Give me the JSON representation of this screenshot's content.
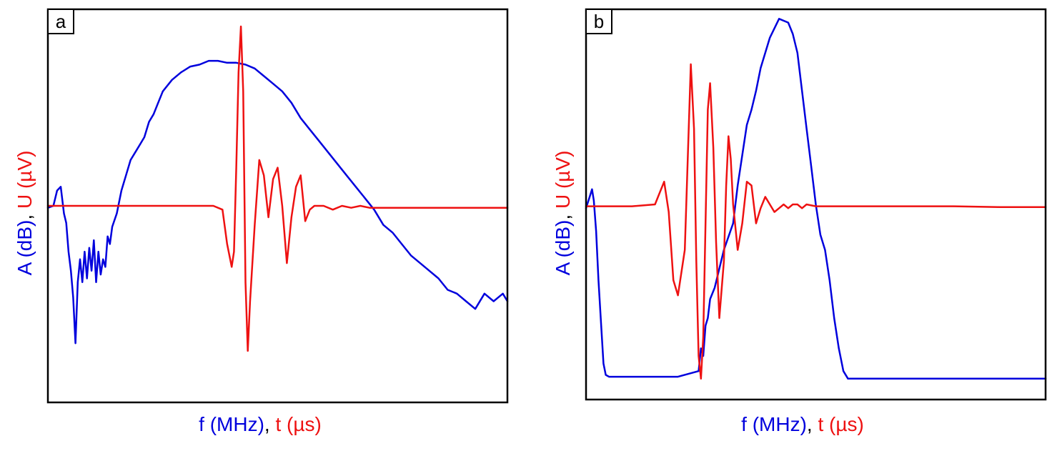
{
  "colors": {
    "amplitude": "#0000dd",
    "voltage": "#ee1111",
    "frame": "#000000"
  },
  "chart_data": [
    {
      "type": "line",
      "panel_label": "a",
      "xlabel": {
        "part1": "f (MHz)",
        "separator": ", ",
        "part2": "t (µs)"
      },
      "ylabel": {
        "part1": "A (dB)",
        "separator": ", ",
        "part2": "U (µV)"
      },
      "ticks": "none",
      "xlim": [
        0,
        1
      ],
      "ylim": [
        0,
        1
      ],
      "series": [
        {
          "name": "A (dB)",
          "color": "#0000dd",
          "x": [
            0.0,
            0.012,
            0.02,
            0.028,
            0.035,
            0.04,
            0.045,
            0.05,
            0.055,
            0.06,
            0.065,
            0.07,
            0.075,
            0.08,
            0.085,
            0.09,
            0.095,
            0.1,
            0.105,
            0.11,
            0.115,
            0.12,
            0.125,
            0.13,
            0.135,
            0.14,
            0.15,
            0.16,
            0.17,
            0.18,
            0.19,
            0.2,
            0.21,
            0.22,
            0.23,
            0.24,
            0.25,
            0.27,
            0.29,
            0.31,
            0.33,
            0.35,
            0.37,
            0.39,
            0.41,
            0.43,
            0.45,
            0.47,
            0.49,
            0.51,
            0.53,
            0.55,
            0.57,
            0.59,
            0.61,
            0.63,
            0.65,
            0.67,
            0.69,
            0.71,
            0.73,
            0.75,
            0.77,
            0.79,
            0.81,
            0.83,
            0.85,
            0.87,
            0.89,
            0.91,
            0.93,
            0.95,
            0.97,
            0.98,
            0.99,
            1.0
          ],
          "y": [
            0.495,
            0.5,
            0.54,
            0.55,
            0.48,
            0.455,
            0.38,
            0.33,
            0.26,
            0.14,
            0.3,
            0.36,
            0.3,
            0.38,
            0.31,
            0.39,
            0.33,
            0.41,
            0.3,
            0.38,
            0.32,
            0.36,
            0.34,
            0.42,
            0.4,
            0.445,
            0.48,
            0.54,
            0.58,
            0.62,
            0.64,
            0.66,
            0.68,
            0.72,
            0.74,
            0.77,
            0.8,
            0.83,
            0.85,
            0.865,
            0.87,
            0.88,
            0.88,
            0.875,
            0.875,
            0.87,
            0.86,
            0.84,
            0.82,
            0.8,
            0.77,
            0.73,
            0.7,
            0.67,
            0.64,
            0.61,
            0.58,
            0.55,
            0.52,
            0.49,
            0.45,
            0.43,
            0.4,
            0.37,
            0.35,
            0.33,
            0.31,
            0.28,
            0.27,
            0.25,
            0.23,
            0.27,
            0.25,
            0.26,
            0.27,
            0.25
          ]
        },
        {
          "name": "U (µV)",
          "color": "#ee1111",
          "x": [
            0.0,
            0.1,
            0.2,
            0.3,
            0.36,
            0.38,
            0.39,
            0.4,
            0.405,
            0.41,
            0.415,
            0.42,
            0.425,
            0.43,
            0.435,
            0.44,
            0.45,
            0.46,
            0.47,
            0.48,
            0.49,
            0.5,
            0.51,
            0.52,
            0.53,
            0.54,
            0.55,
            0.56,
            0.57,
            0.58,
            0.6,
            0.62,
            0.64,
            0.66,
            0.68,
            0.7,
            0.75,
            0.8,
            0.9,
            1.0
          ],
          "y": [
            0.5,
            0.5,
            0.5,
            0.5,
            0.5,
            0.49,
            0.4,
            0.34,
            0.38,
            0.6,
            0.85,
            0.97,
            0.8,
            0.3,
            0.12,
            0.25,
            0.45,
            0.62,
            0.58,
            0.47,
            0.57,
            0.6,
            0.5,
            0.35,
            0.47,
            0.55,
            0.58,
            0.46,
            0.49,
            0.5,
            0.5,
            0.49,
            0.5,
            0.495,
            0.5,
            0.495,
            0.495,
            0.495,
            0.495,
            0.495
          ]
        }
      ]
    },
    {
      "type": "line",
      "panel_label": "b",
      "xlabel": {
        "part1": "f (MHz)",
        "separator": ", ",
        "part2": "t (µs)"
      },
      "ylabel": {
        "part1": "A (dB)",
        "separator": ", ",
        "part2": "U (µV)"
      },
      "ticks": "none",
      "xlim": [
        0,
        1
      ],
      "ylim": [
        0,
        1
      ],
      "series": [
        {
          "name": "A (dB)",
          "color": "#0000dd",
          "x": [
            0.0,
            0.008,
            0.013,
            0.017,
            0.022,
            0.027,
            0.033,
            0.038,
            0.043,
            0.05,
            0.1,
            0.15,
            0.2,
            0.245,
            0.25,
            0.255,
            0.26,
            0.265,
            0.27,
            0.28,
            0.3,
            0.32,
            0.33,
            0.34,
            0.35,
            0.36,
            0.37,
            0.38,
            0.4,
            0.42,
            0.44,
            0.45,
            0.46,
            0.47,
            0.48,
            0.49,
            0.5,
            0.51,
            0.52,
            0.53,
            0.54,
            0.55,
            0.56,
            0.57,
            0.6,
            0.7,
            0.8,
            0.9,
            1.0
          ],
          "y": [
            0.49,
            0.52,
            0.54,
            0.51,
            0.43,
            0.3,
            0.18,
            0.08,
            0.05,
            0.045,
            0.045,
            0.045,
            0.045,
            0.06,
            0.12,
            0.1,
            0.18,
            0.2,
            0.25,
            0.28,
            0.38,
            0.45,
            0.55,
            0.63,
            0.71,
            0.75,
            0.8,
            0.86,
            0.94,
            0.99,
            0.98,
            0.95,
            0.9,
            0.8,
            0.7,
            0.6,
            0.5,
            0.42,
            0.38,
            0.3,
            0.2,
            0.12,
            0.06,
            0.04,
            0.04,
            0.04,
            0.04,
            0.04,
            0.04
          ]
        },
        {
          "name": "U (µV)",
          "color": "#ee1111",
          "x": [
            0.0,
            0.1,
            0.15,
            0.17,
            0.18,
            0.19,
            0.2,
            0.215,
            0.228,
            0.235,
            0.24,
            0.245,
            0.25,
            0.255,
            0.26,
            0.265,
            0.27,
            0.277,
            0.283,
            0.29,
            0.3,
            0.305,
            0.31,
            0.315,
            0.32,
            0.33,
            0.34,
            0.35,
            0.36,
            0.37,
            0.38,
            0.39,
            0.4,
            0.41,
            0.42,
            0.43,
            0.44,
            0.45,
            0.46,
            0.47,
            0.48,
            0.5,
            0.55,
            0.6,
            0.7,
            0.8,
            0.9,
            1.0
          ],
          "y": [
            0.495,
            0.495,
            0.5,
            0.56,
            0.48,
            0.3,
            0.26,
            0.38,
            0.87,
            0.7,
            0.35,
            0.1,
            0.04,
            0.15,
            0.45,
            0.75,
            0.82,
            0.65,
            0.4,
            0.2,
            0.35,
            0.55,
            0.68,
            0.62,
            0.5,
            0.38,
            0.45,
            0.56,
            0.55,
            0.45,
            0.49,
            0.52,
            0.5,
            0.48,
            0.49,
            0.5,
            0.49,
            0.5,
            0.5,
            0.49,
            0.5,
            0.495,
            0.495,
            0.495,
            0.495,
            0.495,
            0.493,
            0.493
          ]
        }
      ]
    }
  ]
}
